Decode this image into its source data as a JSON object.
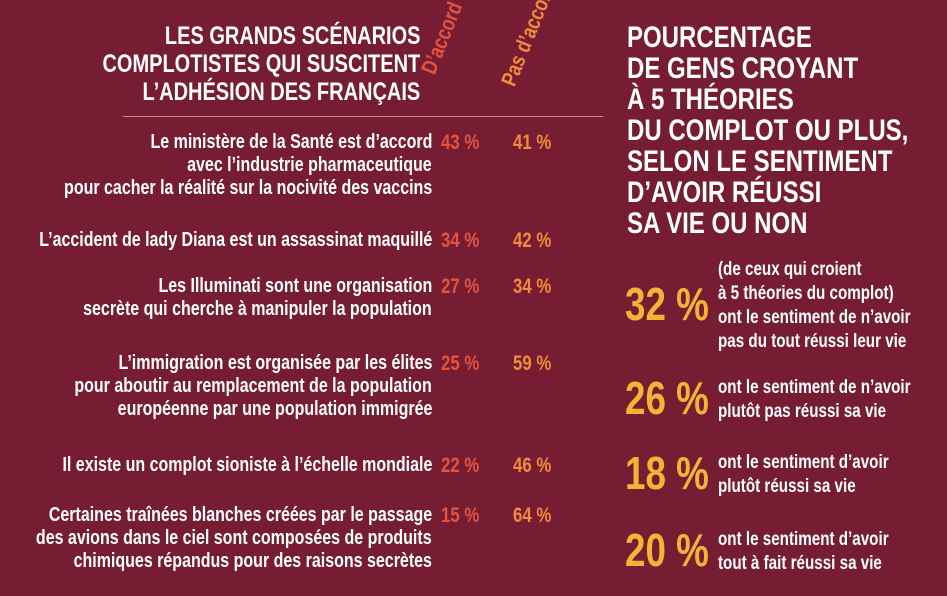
{
  "left": {
    "title_lines": [
      "LES GRANDS SCÉNARIOS",
      "COMPLOTISTES QUI SUSCITENT",
      "L’ADHÉSION DES FRANÇAIS"
    ],
    "col_headers": [
      "D’accord",
      "Pas d’accord"
    ],
    "rows": [
      {
        "lines": [
          "Le ministère de la Santé est d’accord",
          "avec l’industrie pharmaceutique",
          "pour cacher la réalité sur la nocivité des vaccins"
        ],
        "agree": "43 %",
        "disagree": "41 %"
      },
      {
        "lines": [
          "L’accident de lady Diana est un assassinat maquillé"
        ],
        "agree": "34 %",
        "disagree": "42 %"
      },
      {
        "lines": [
          "Les Illuminati sont une organisation",
          "secrète qui cherche à manipuler la population"
        ],
        "agree": "27 %",
        "disagree": "34 %"
      },
      {
        "lines": [
          "L’immigration est organisée par les élites",
          "pour aboutir au remplacement de la population",
          "européenne par une population immigrée"
        ],
        "agree": "25 %",
        "disagree": "59 %"
      },
      {
        "lines": [
          "Il existe un complot sioniste à l’échelle mondiale"
        ],
        "agree": "22 %",
        "disagree": "46 %"
      },
      {
        "lines": [
          "Certaines traînées blanches créées par le passage",
          "des avions dans le ciel sont composées de produits",
          "chimiques répandus pour des raisons secrètes"
        ],
        "agree": "15 %",
        "disagree": "64 %"
      }
    ]
  },
  "right": {
    "title_lines": [
      "POURCENTAGE",
      "DE GENS CROYANT",
      "À 5 THÉORIES",
      "DU COMPLOT OU PLUS,",
      "SELON LE SENTIMENT",
      "D’AVOIR RÉUSSI",
      "SA VIE OU NON"
    ],
    "items": [
      {
        "value": "32 %",
        "lines": [
          "(de ceux qui croient",
          "à 5 théories du complot)",
          "ont le sentiment de n’avoir",
          "pas du tout réussi leur vie"
        ]
      },
      {
        "value": "26 %",
        "lines": [
          "ont le sentiment de n’avoir",
          "plutôt pas réussi sa vie"
        ]
      },
      {
        "value": "18 %",
        "lines": [
          "ont le sentiment d’avoir",
          "plutôt réussi sa vie"
        ]
      },
      {
        "value": "20 %",
        "lines": [
          "ont le sentiment d’avoir",
          "tout à fait réussi sa vie"
        ]
      }
    ]
  }
}
